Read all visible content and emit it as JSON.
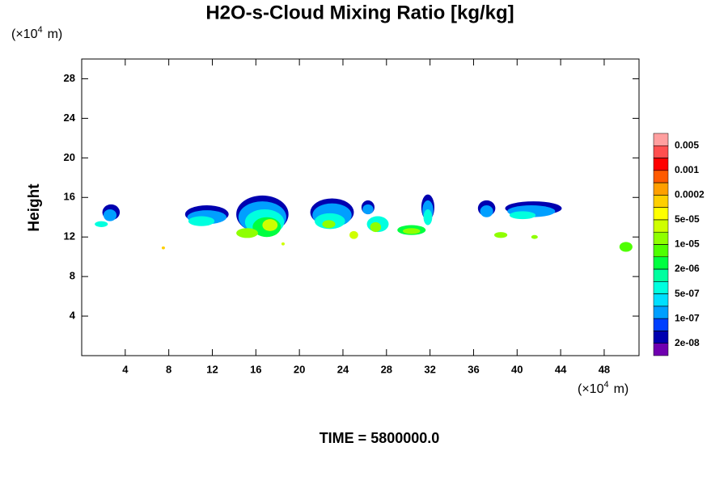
{
  "chart_data": {
    "type": "contour",
    "title": "H2O-s-Cloud Mixing Ratio [kg/kg]",
    "y_label": "Height",
    "y_unit": {
      "base": "(×10",
      "exponent": "4",
      "suffix": "m)"
    },
    "x_unit": {
      "base": "(×10",
      "exponent": "4",
      "suffix": "m)"
    },
    "footer": "TIME = 5800000.0",
    "xlim": [
      0,
      51.2
    ],
    "ylim": [
      0,
      30
    ],
    "xticks": [
      4,
      8,
      12,
      16,
      20,
      24,
      28,
      32,
      36,
      40,
      44,
      48
    ],
    "yticks": [
      4,
      8,
      12,
      16,
      20,
      24,
      28
    ],
    "colorbar": {
      "levels": [
        0.005,
        0.002,
        0.001,
        0.0005,
        0.0002,
        0.0001,
        5e-05,
        2e-05,
        1e-05,
        5e-06,
        2e-06,
        1e-06,
        5e-07,
        2e-07,
        1e-07,
        5e-08,
        2e-08
      ],
      "colors": [
        "#ff9f9f",
        "#ff4f4f",
        "#ff0000",
        "#ff5a00",
        "#ff9f00",
        "#ffcf00",
        "#ffff00",
        "#cfff00",
        "#8fff00",
        "#4fff00",
        "#00ff40",
        "#00ff9f",
        "#00ffdf",
        "#00dfff",
        "#009fff",
        "#0040ff",
        "#0000b0",
        "#7000b0"
      ],
      "ticks": [
        0.005,
        0.001,
        0.0002,
        {
          "value": 5e-05,
          "label": "5e-05"
        },
        {
          "value": 1e-05,
          "label": "1e-05"
        },
        {
          "value": 2e-06,
          "label": "2e-06"
        },
        {
          "value": 5e-07,
          "label": "5e-07"
        },
        {
          "value": 1e-07,
          "label": "1e-07"
        },
        {
          "value": 2e-08,
          "label": "2e-08"
        }
      ]
    },
    "clouds": [
      {
        "x": 2.7,
        "y": 14.5,
        "rx": 0.8,
        "ry": 0.8,
        "value": 2.5e-08
      },
      {
        "x": 2.6,
        "y": 14.2,
        "rx": 0.6,
        "ry": 0.6,
        "value": 1.5e-07
      },
      {
        "x": 1.8,
        "y": 13.3,
        "rx": 0.6,
        "ry": 0.3,
        "value": 6e-07
      },
      {
        "x": 11.5,
        "y": 14.3,
        "rx": 2.0,
        "ry": 0.9,
        "value": 2.5e-08
      },
      {
        "x": 11.5,
        "y": 14.0,
        "rx": 1.8,
        "ry": 0.7,
        "value": 1.5e-07
      },
      {
        "x": 11.0,
        "y": 13.6,
        "rx": 1.2,
        "ry": 0.5,
        "value": 6e-07
      },
      {
        "x": 16.6,
        "y": 14.3,
        "rx": 2.4,
        "ry": 1.9,
        "value": 2.5e-08
      },
      {
        "x": 16.6,
        "y": 14.0,
        "rx": 2.2,
        "ry": 1.6,
        "value": 1.5e-07
      },
      {
        "x": 16.8,
        "y": 13.5,
        "rx": 1.8,
        "ry": 1.3,
        "value": 6e-07
      },
      {
        "x": 17.0,
        "y": 13.0,
        "rx": 1.3,
        "ry": 1.0,
        "value": 3e-06
      },
      {
        "x": 15.2,
        "y": 12.4,
        "rx": 1.0,
        "ry": 0.5,
        "value": 1.5e-05
      },
      {
        "x": 17.3,
        "y": 13.2,
        "rx": 0.7,
        "ry": 0.6,
        "value": 3e-05
      },
      {
        "x": 23.0,
        "y": 14.5,
        "rx": 2.0,
        "ry": 1.4,
        "value": 2.5e-08
      },
      {
        "x": 23.0,
        "y": 14.2,
        "rx": 1.8,
        "ry": 1.2,
        "value": 1.5e-07
      },
      {
        "x": 22.8,
        "y": 13.6,
        "rx": 1.4,
        "ry": 0.8,
        "value": 6e-07
      },
      {
        "x": 22.7,
        "y": 13.3,
        "rx": 0.6,
        "ry": 0.4,
        "value": 1.5e-05
      },
      {
        "x": 25.0,
        "y": 12.2,
        "rx": 0.4,
        "ry": 0.4,
        "value": 3e-05
      },
      {
        "x": 26.3,
        "y": 15.0,
        "rx": 0.6,
        "ry": 0.7,
        "value": 2.5e-08
      },
      {
        "x": 26.3,
        "y": 14.8,
        "rx": 0.5,
        "ry": 0.5,
        "value": 1.5e-07
      },
      {
        "x": 27.2,
        "y": 13.3,
        "rx": 1.0,
        "ry": 0.8,
        "value": 6e-07
      },
      {
        "x": 27.0,
        "y": 13.0,
        "rx": 0.5,
        "ry": 0.5,
        "value": 1.5e-05
      },
      {
        "x": 31.8,
        "y": 15.0,
        "rx": 0.6,
        "ry": 1.3,
        "value": 2.5e-08
      },
      {
        "x": 31.8,
        "y": 14.7,
        "rx": 0.5,
        "ry": 1.0,
        "value": 1.5e-07
      },
      {
        "x": 31.8,
        "y": 14.0,
        "rx": 0.4,
        "ry": 0.8,
        "value": 6e-07
      },
      {
        "x": 30.3,
        "y": 12.7,
        "rx": 1.3,
        "ry": 0.5,
        "value": 3e-06
      },
      {
        "x": 30.3,
        "y": 12.6,
        "rx": 0.8,
        "ry": 0.3,
        "value": 1.5e-05
      },
      {
        "x": 37.2,
        "y": 14.9,
        "rx": 0.8,
        "ry": 0.8,
        "value": 2.5e-08
      },
      {
        "x": 37.2,
        "y": 14.6,
        "rx": 0.6,
        "ry": 0.6,
        "value": 1.5e-07
      },
      {
        "x": 41.5,
        "y": 14.9,
        "rx": 2.6,
        "ry": 0.7,
        "value": 2.5e-08
      },
      {
        "x": 41.3,
        "y": 14.6,
        "rx": 2.2,
        "ry": 0.6,
        "value": 1.5e-07
      },
      {
        "x": 40.5,
        "y": 14.2,
        "rx": 1.2,
        "ry": 0.4,
        "value": 6e-07
      },
      {
        "x": 38.5,
        "y": 12.2,
        "rx": 0.6,
        "ry": 0.3,
        "value": 1.5e-05
      },
      {
        "x": 41.6,
        "y": 12.0,
        "rx": 0.3,
        "ry": 0.2,
        "value": 1.5e-05
      },
      {
        "x": 50.0,
        "y": 11.0,
        "rx": 0.6,
        "ry": 0.5,
        "value": 6e-06
      },
      {
        "x": 7.5,
        "y": 10.9,
        "rx": 0.15,
        "ry": 0.15,
        "value": 0.0001
      },
      {
        "x": 18.5,
        "y": 11.3,
        "rx": 0.15,
        "ry": 0.15,
        "value": 3e-05
      }
    ]
  }
}
